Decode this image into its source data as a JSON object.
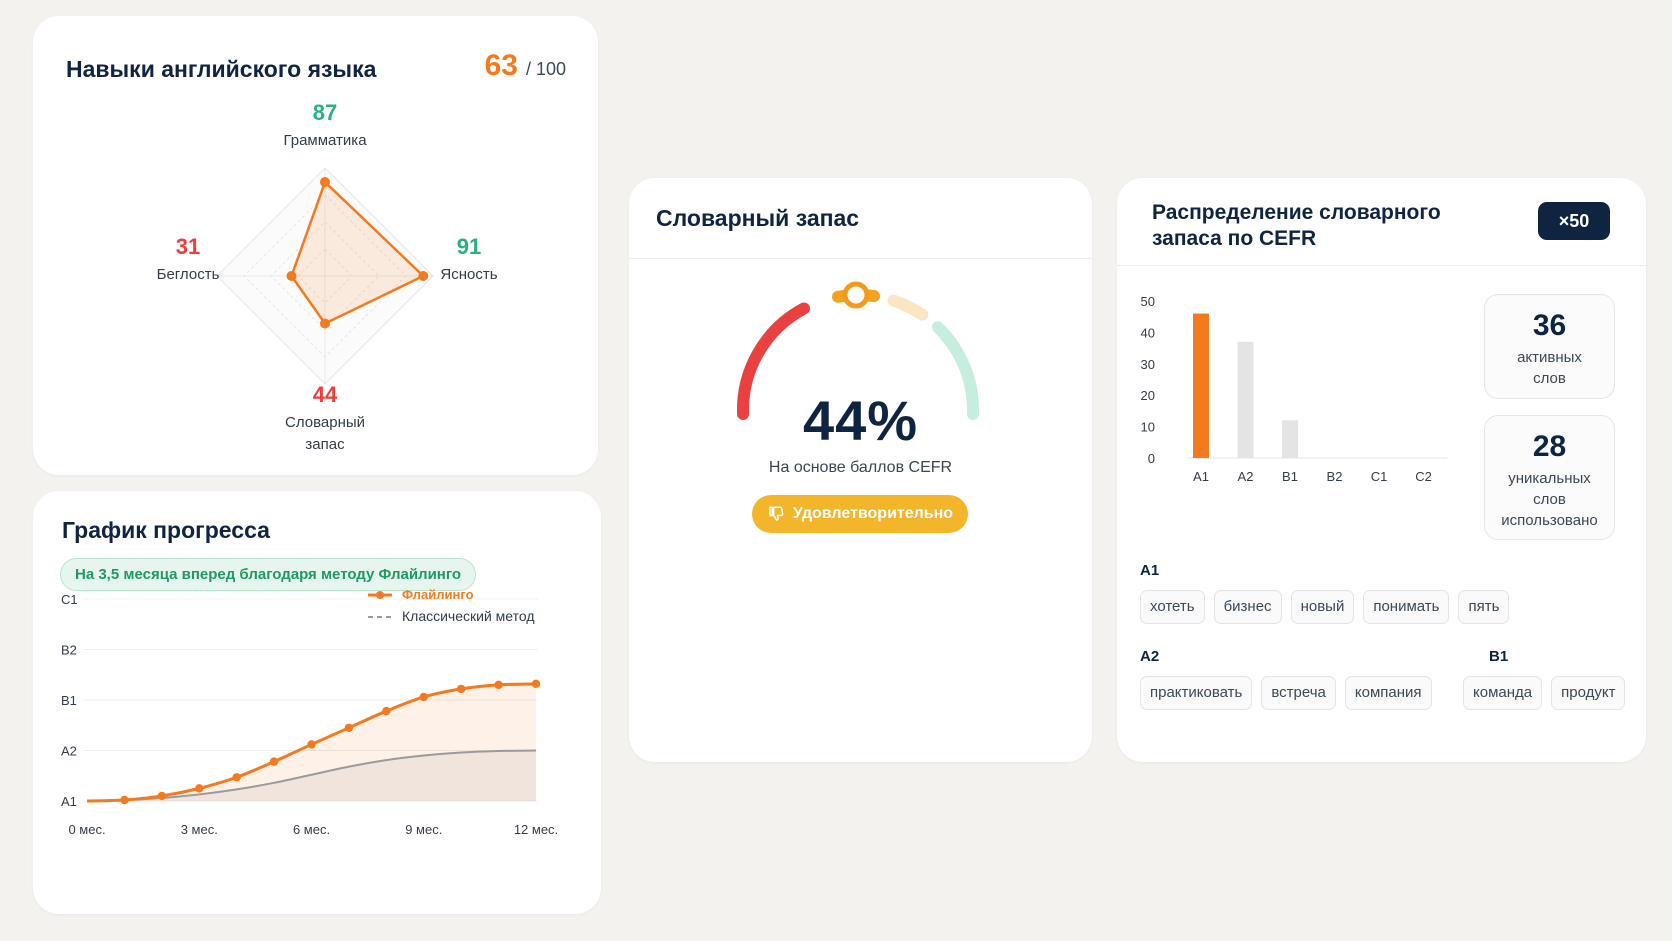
{
  "skills": {
    "title": "Навыки английского языка",
    "score": "63",
    "score_max": "/ 100",
    "axes": [
      {
        "name": "Грамматика",
        "value": 87,
        "color": "#28b07d"
      },
      {
        "name": "Ясность",
        "value": 91,
        "color": "#28b07d"
      },
      {
        "name": "Словарный запас",
        "value": 44,
        "color": "#ee3e3b"
      },
      {
        "name": "Беглость",
        "value": 31,
        "color": "#ee3e3b"
      }
    ],
    "label_top": {
      "num": "87",
      "lbl": "Грамматика"
    },
    "label_right": {
      "num": "91",
      "lbl": "Ясность"
    },
    "label_bottom": {
      "num": "44",
      "lbl1": "Словарный",
      "lbl2": "запас"
    },
    "label_left": {
      "num": "31",
      "lbl": "Беглость"
    }
  },
  "progress": {
    "title": "График прогресса",
    "badge": "На 3,5 месяца вперед благодаря методу Флайлинго",
    "chart_data": {
      "type": "line",
      "x_ticks": [
        "0 мес.",
        "3 мес.",
        "6 мес.",
        "9 мес.",
        "12 мес."
      ],
      "y_ticks": [
        "A1",
        "A2",
        "B1",
        "B2",
        "C1"
      ],
      "legend_position": "top-right",
      "series": [
        {
          "name": "Флайлинго",
          "color": "#f47a1f",
          "x": [
            0,
            1,
            2,
            3,
            4,
            5,
            6,
            7,
            8,
            9,
            10,
            11,
            12
          ],
          "y": [
            0,
            0.02,
            0.1,
            0.25,
            0.47,
            0.78,
            1.12,
            1.45,
            1.78,
            2.06,
            2.22,
            2.3,
            2.32
          ]
        },
        {
          "name": "Классический метод",
          "color": "#9a9a9a",
          "x": [
            0,
            1,
            2,
            3,
            4,
            5,
            6,
            7,
            8,
            9,
            10,
            11,
            12
          ],
          "y": [
            0,
            0.02,
            0.06,
            0.13,
            0.23,
            0.36,
            0.52,
            0.68,
            0.81,
            0.9,
            0.96,
            0.99,
            1.0
          ]
        }
      ]
    }
  },
  "vocab": {
    "title": "Словарный запас",
    "percent": "44%",
    "percent_value": 44,
    "basis": "На основе баллов CEFR",
    "grade": "Удовлетворительно",
    "grade_icon": "thumbs-down-icon"
  },
  "cefr": {
    "title": "Распределение словарного запаса по CEFR",
    "multiplier": "×50",
    "chart_data": {
      "type": "bar",
      "categories": [
        "A1",
        "A2",
        "B1",
        "B2",
        "C1",
        "C2"
      ],
      "values": [
        46,
        37,
        12,
        0,
        0,
        0
      ],
      "y_ticks": [
        0,
        10,
        20,
        30,
        40,
        50
      ],
      "ylim": [
        0,
        50
      ],
      "highlight_color": "#f47a1f",
      "bar_color": "#e4e4e4"
    },
    "stats": [
      {
        "number": "36",
        "l1": "активных",
        "l2": "слов"
      },
      {
        "number": "28",
        "l1": "уникальных",
        "l2": "слов",
        "l3": "использовано"
      }
    ],
    "levels": {
      "a1": {
        "name": "A1",
        "words": [
          "хотеть",
          "бизнес",
          "новый",
          "понимать",
          "пять"
        ]
      },
      "a2": {
        "name": "A2",
        "words": [
          "практиковать",
          "встреча",
          "компания"
        ]
      },
      "b1": {
        "name": "B1",
        "words": [
          "команда",
          "продукт"
        ]
      }
    }
  }
}
